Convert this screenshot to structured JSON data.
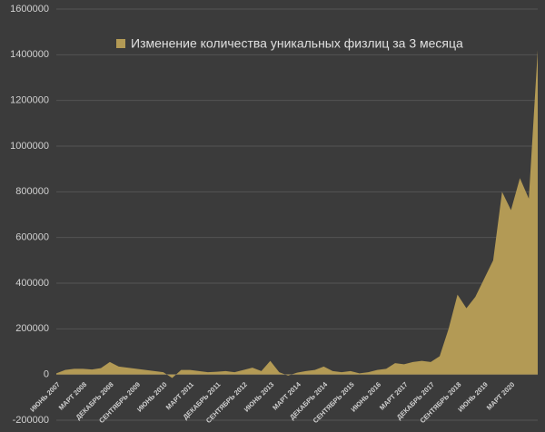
{
  "chart_data": {
    "type": "area",
    "legend": "Изменение количества уникальных физлиц за 3 месяца",
    "color": "#b39a55",
    "categories": [
      "ИЮНЬ 2007",
      null,
      null,
      "МАРТ 2008",
      null,
      null,
      "ДЕКАБРЬ 2008",
      null,
      null,
      "СЕНТЯБРЬ 2009",
      null,
      null,
      "ИЮНЬ 2010",
      null,
      null,
      "МАРТ 2011",
      null,
      null,
      "ДЕКАБРЬ 2011",
      null,
      null,
      "СЕНТЯБРЬ 2012",
      null,
      null,
      "ИЮНЬ 2013",
      null,
      null,
      "МАРТ 2014",
      null,
      null,
      "ДЕКАБРЬ 2014",
      null,
      null,
      "СЕНТЯБРЬ 2015",
      null,
      null,
      "ИЮНЬ 2016",
      null,
      null,
      "МАРТ 2017",
      null,
      null,
      "ДЕКАБРЬ 2017",
      null,
      null,
      "СЕНТЯБРЬ 2018",
      null,
      null,
      "ИЮНЬ 2019",
      null,
      null,
      "МАРТ 2020",
      null,
      null,
      null
    ],
    "values": [
      5000,
      20000,
      25000,
      25000,
      22000,
      28000,
      55000,
      35000,
      30000,
      25000,
      20000,
      15000,
      10000,
      -15000,
      20000,
      20000,
      15000,
      10000,
      12000,
      15000,
      10000,
      20000,
      30000,
      15000,
      60000,
      10000,
      -5000,
      8000,
      15000,
      20000,
      35000,
      15000,
      10000,
      15000,
      5000,
      10000,
      20000,
      25000,
      50000,
      45000,
      55000,
      60000,
      55000,
      80000,
      200000,
      350000,
      290000,
      340000,
      420000,
      500000,
      800000,
      720000,
      860000,
      770000,
      1420000
    ],
    "ylim": [
      -200000,
      1600000
    ],
    "yticks": [
      -200000,
      0,
      200000,
      400000,
      600000,
      800000,
      1000000,
      1200000,
      1400000,
      1600000
    ],
    "grid": true
  }
}
